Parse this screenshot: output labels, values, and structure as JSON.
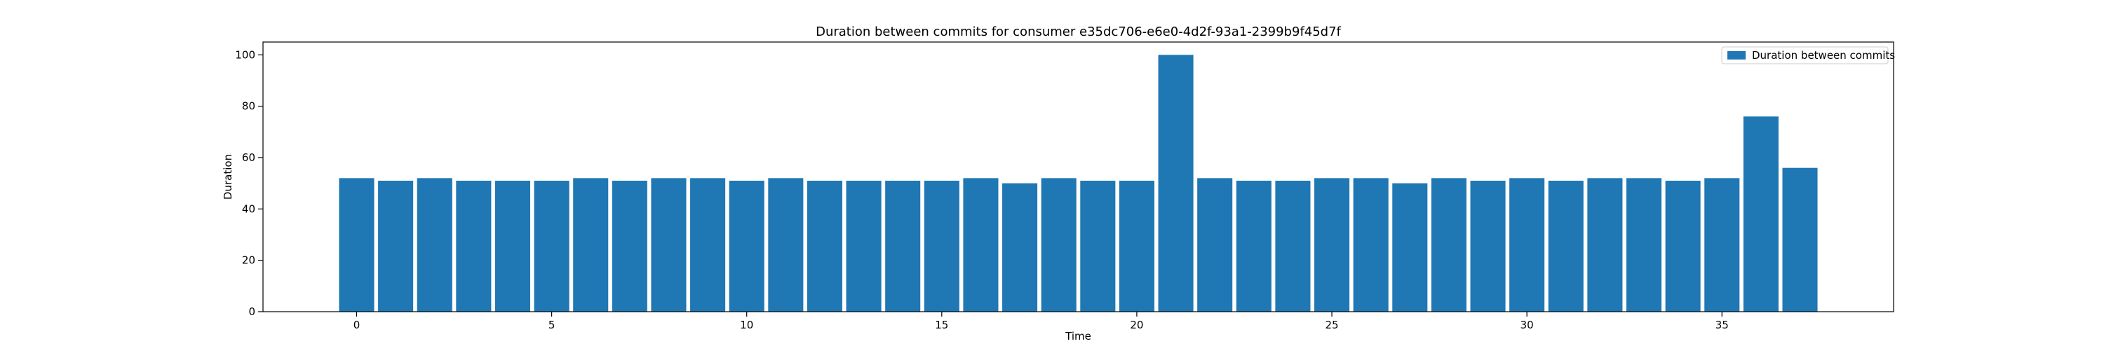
{
  "chart_data": {
    "type": "bar",
    "title": "Duration between commits for consumer e35dc706-e6e0-4d2f-93a1-2399b9f45d7f",
    "xlabel": "Time",
    "ylabel": "Duration",
    "x": [
      0,
      1,
      2,
      3,
      4,
      5,
      6,
      7,
      8,
      9,
      10,
      11,
      12,
      13,
      14,
      15,
      16,
      17,
      18,
      19,
      20,
      21,
      22,
      23,
      24,
      25,
      26,
      27,
      28,
      29,
      30,
      31,
      32,
      33,
      34,
      35,
      36,
      37
    ],
    "series": [
      {
        "name": "Duration between commits",
        "color": "#1f77b4",
        "values": [
          52,
          51,
          52,
          51,
          51,
          51,
          52,
          51,
          52,
          52,
          51,
          52,
          51,
          51,
          51,
          51,
          52,
          50,
          52,
          51,
          51,
          100,
          52,
          51,
          51,
          52,
          52,
          50,
          52,
          51,
          52,
          51,
          52,
          52,
          51,
          52,
          76,
          56
        ]
      }
    ],
    "xlim": [
      -2.4,
      39.4
    ],
    "ylim": [
      0,
      105
    ],
    "xticks": [
      0,
      5,
      10,
      15,
      20,
      25,
      30,
      35
    ],
    "yticks": [
      0,
      20,
      40,
      60,
      80,
      100
    ],
    "grid": false,
    "legend_position": "top-right"
  }
}
